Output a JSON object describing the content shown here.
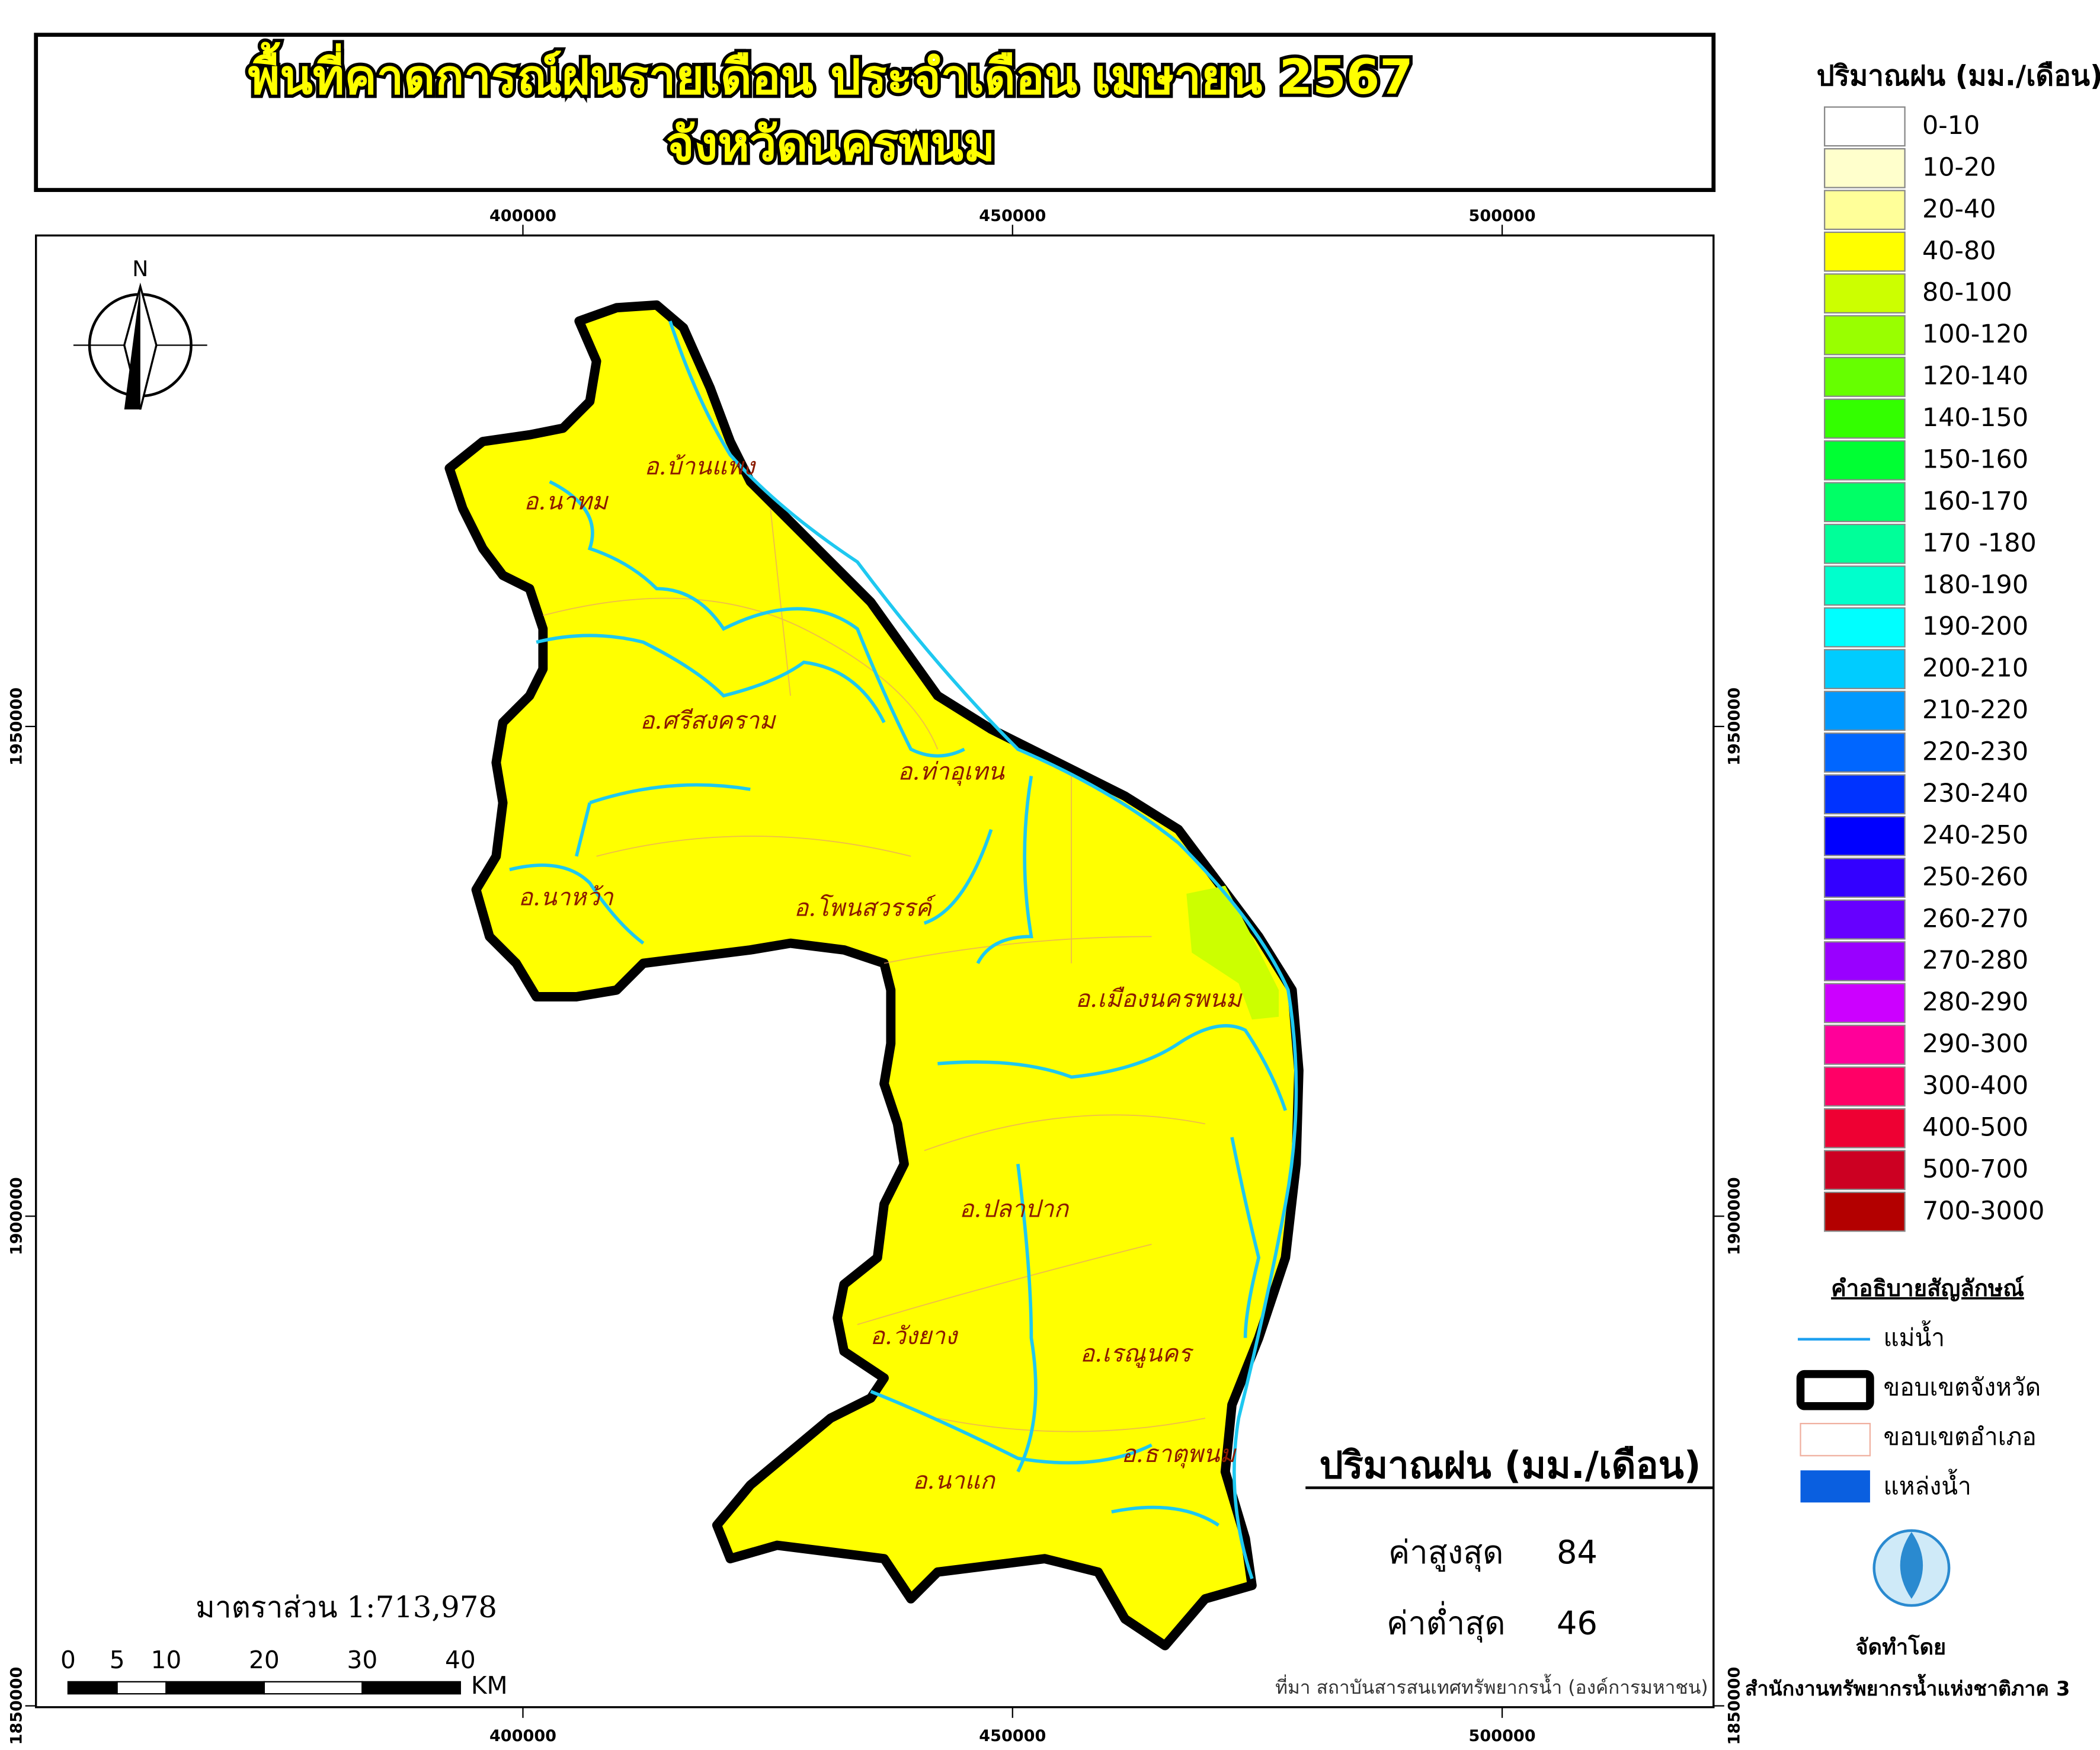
{
  "title": [
    "พื้นที่คาดการณ์ฝนรายเดือน ประจำเดือน เมษายน 2567",
    "จังหวัดนครพนม"
  ],
  "map": {
    "north": "N",
    "easting_ticks": [
      400000,
      450000,
      500000
    ],
    "northing_ticks": [
      1950000,
      1900000,
      1850000
    ],
    "districts": [
      "อ.บ้านแพง",
      "อ.นาทม",
      "อ.ศรีสงคราม",
      "อ.ท่าอุเทน",
      "อ.นาหว้า",
      "อ.โพนสวรรค์",
      "อ.เมืองนครพนม",
      "อ.ปลาปาก",
      "อ.วังยาง",
      "อ.เรณูนคร",
      "อ.ธาตุพนม",
      "อ.นาแก"
    ],
    "scale_text": "มาตราส่วน  1:713,978",
    "scale_bar": {
      "ticks": [
        0,
        5,
        10,
        20,
        30,
        40
      ],
      "unit": "KM"
    }
  },
  "legend": {
    "title": "ปริมาณฝน (มม./เดือน)",
    "classes": [
      {
        "label": "0-10",
        "color": "#ffffff"
      },
      {
        "label": "10-20",
        "color": "#ffffcc"
      },
      {
        "label": "20-40",
        "color": "#ffff99"
      },
      {
        "label": "40-80",
        "color": "#ffff00"
      },
      {
        "label": "80-100",
        "color": "#ccff00"
      },
      {
        "label": "100-120",
        "color": "#99ff00"
      },
      {
        "label": "120-140",
        "color": "#66ff00"
      },
      {
        "label": "140-150",
        "color": "#33ff00"
      },
      {
        "label": "150-160",
        "color": "#00ff33"
      },
      {
        "label": "160-170",
        "color": "#00ff66"
      },
      {
        "label": "170 -180",
        "color": "#00ff99"
      },
      {
        "label": "180-190",
        "color": "#00ffcc"
      },
      {
        "label": "190-200",
        "color": "#00ffff"
      },
      {
        "label": "200-210",
        "color": "#00ccff"
      },
      {
        "label": "210-220",
        "color": "#0099ff"
      },
      {
        "label": "220-230",
        "color": "#0066ff"
      },
      {
        "label": "230-240",
        "color": "#0033ff"
      },
      {
        "label": "240-250",
        "color": "#0000ff"
      },
      {
        "label": "250-260",
        "color": "#3300ff"
      },
      {
        "label": "260-270",
        "color": "#6600ff"
      },
      {
        "label": "270-280",
        "color": "#9900ff"
      },
      {
        "label": "280-290",
        "color": "#cc00ff"
      },
      {
        "label": "290-300",
        "color": "#ff0099"
      },
      {
        "label": "300-400",
        "color": "#ff0066"
      },
      {
        "label": "400-500",
        "color": "#ee0033"
      },
      {
        "label": "500-700",
        "color": "#cc0022"
      },
      {
        "label": "700-3000",
        "color": "#b30000"
      }
    ]
  },
  "symbols": {
    "title": "คำอธิบายสัญลักษณ์",
    "items": [
      "แม่น้ำ",
      "ขอบเขตจังหวัด",
      "ขอบเขตอำเภอ",
      "แหล่งน้ำ"
    ]
  },
  "stats": {
    "title": "ปริมาณฝน (มม./เดือน)",
    "max_label": "ค่าสูงสุด",
    "max": 84,
    "min_label": "ค่าต่ำสุด",
    "min": 46
  },
  "source": "ที่มา  สถาบันสารสนเทศทรัพยากรน้ำ (องค์การมหาชน)",
  "producer": {
    "label": "จัดทำโดย",
    "name": "สำนักงานทรัพยากรน้ำแห่งชาติภาค 3"
  }
}
